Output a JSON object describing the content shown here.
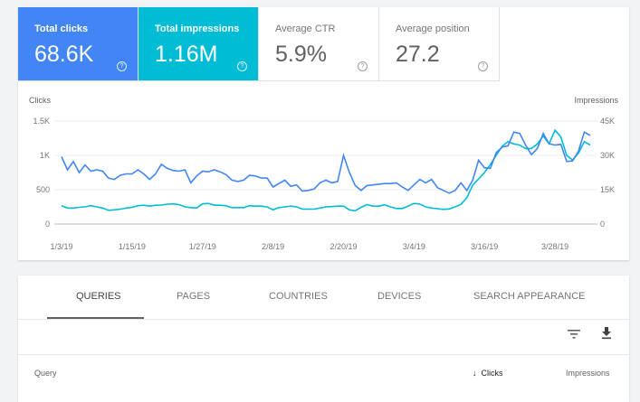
{
  "metrics": [
    {
      "label": "Total clicks",
      "value": "68.6K",
      "selected": true,
      "color": "#4285f4"
    },
    {
      "label": "Total impressions",
      "value": "1.16M",
      "selected": true,
      "color": "#00bcd4"
    },
    {
      "label": "Average CTR",
      "value": "5.9%",
      "selected": false
    },
    {
      "label": "Average position",
      "value": "27.2",
      "selected": false
    }
  ],
  "help_glyph": "?",
  "chart_data": {
    "type": "line",
    "left_axis_label": "Clicks",
    "right_axis_label": "Impressions",
    "left_ticks": [
      "0",
      "500",
      "1K",
      "1.5K"
    ],
    "left_ylim": [
      0,
      1500
    ],
    "right_ticks": [
      "0",
      "15K",
      "30K",
      "45K"
    ],
    "right_ylim": [
      0,
      45000
    ],
    "x_ticks": [
      "1/3/19",
      "1/15/19",
      "1/27/19",
      "2/8/19",
      "2/20/19",
      "3/4/19",
      "3/16/19",
      "3/28/19"
    ],
    "x_start": "1/3/19",
    "x_end": "4/2/19",
    "grid": true,
    "series": [
      {
        "name": "Clicks",
        "axis": "left",
        "color": "#4285f4",
        "values": [
          980,
          790,
          910,
          750,
          860,
          770,
          790,
          770,
          670,
          650,
          710,
          730,
          730,
          790,
          730,
          650,
          730,
          870,
          810,
          780,
          770,
          790,
          600,
          700,
          770,
          760,
          790,
          760,
          720,
          640,
          620,
          640,
          710,
          700,
          670,
          670,
          540,
          590,
          640,
          550,
          570,
          480,
          490,
          510,
          600,
          640,
          600,
          620,
          1000,
          750,
          560,
          490,
          560,
          570,
          580,
          590,
          590,
          600,
          540,
          490,
          570,
          650,
          600,
          650,
          530,
          490,
          450,
          490,
          600,
          490,
          640,
          930,
          820,
          810,
          1040,
          1120,
          1140,
          1340,
          1320,
          1150,
          1010,
          1100,
          1320,
          1170,
          1150,
          1160,
          910,
          920,
          1060,
          1340,
          1290
        ]
      },
      {
        "name": "Impressions",
        "axis": "right",
        "color": "#00bcd4",
        "values": [
          8000,
          7000,
          7000,
          7300,
          7500,
          8000,
          7500,
          7000,
          6000,
          6200,
          6500,
          7000,
          7300,
          8000,
          8200,
          7800,
          8200,
          8300,
          8700,
          8800,
          8500,
          7500,
          7200,
          7000,
          8800,
          9000,
          8200,
          8200,
          8000,
          7200,
          7200,
          7200,
          8000,
          7800,
          7800,
          7500,
          6200,
          7200,
          7500,
          7800,
          7500,
          6500,
          6500,
          6500,
          7000,
          7500,
          7600,
          7800,
          7800,
          6200,
          5800,
          7300,
          8500,
          7800,
          7800,
          8400,
          7500,
          6800,
          6800,
          7800,
          9000,
          8700,
          7500,
          7000,
          6700,
          6400,
          6600,
          7500,
          8600,
          11500,
          17000,
          19700,
          22500,
          26000,
          30000,
          34000,
          36000,
          35000,
          34500,
          33000,
          33000,
          35000,
          38500,
          35000,
          41000,
          38000,
          30000,
          28000,
          31000,
          36000,
          34500
        ]
      }
    ]
  },
  "tabs": [
    "QUERIES",
    "PAGES",
    "COUNTRIES",
    "DEVICES",
    "SEARCH APPEARANCE"
  ],
  "table": {
    "headers": {
      "query": "Query",
      "clicks": "Clicks",
      "impressions": "Impressions"
    },
    "sort_glyph": "↓"
  }
}
